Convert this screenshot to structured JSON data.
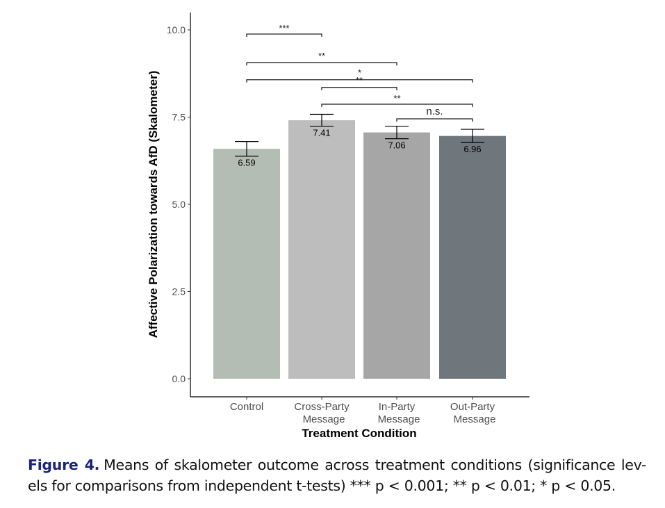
{
  "chart_data": {
    "type": "bar",
    "categories": [
      "Control",
      "Cross-Party\nMessage",
      "In-Party\nMessage",
      "Out-Party\nMessage"
    ],
    "values": [
      6.59,
      7.41,
      7.06,
      6.96
    ],
    "value_labels": [
      "6.59",
      "7.41",
      "7.06",
      "6.96"
    ],
    "error": [
      0.21,
      0.17,
      0.18,
      0.19
    ],
    "colors": [
      "#b3bdb4",
      "#bdbdbd",
      "#a6a6a6",
      "#6f767c"
    ],
    "xlabel": "Treatment Condition",
    "ylabel": "Affective Polarization towards AfD (Skalometer)",
    "ylim": [
      0,
      10.5
    ],
    "yticks": [
      "0.0",
      "2.5",
      "5.0",
      "7.5",
      "10.0"
    ],
    "grid": false,
    "significance": [
      {
        "from": 0,
        "to": 1,
        "y": 9.88,
        "label": "***",
        "label_y": 10.14
      },
      {
        "from": 0,
        "to": 2,
        "y": 9.06,
        "label": "**",
        "label_y": 9.34
      },
      {
        "from": 0,
        "to": 3,
        "y": 8.57,
        "label": "*",
        "label_y": 8.86
      },
      {
        "from": 1,
        "to": 2,
        "y": 8.35,
        "label": "**",
        "label_y": 8.65
      },
      {
        "from": 1,
        "to": 3,
        "y": 7.87,
        "label": "**",
        "label_y": 8.13
      },
      {
        "from": 2,
        "to": 3,
        "y": 7.45,
        "label": "n.s.",
        "label_y": 7.67
      }
    ]
  },
  "caption": {
    "figure": "Figure 4.",
    "text": "Means of skalometer outcome across treatment conditions (significance lev-els for comparisons from independent t-tests) *** p < 0.001; ** p < 0.01; * p < 0.05."
  }
}
